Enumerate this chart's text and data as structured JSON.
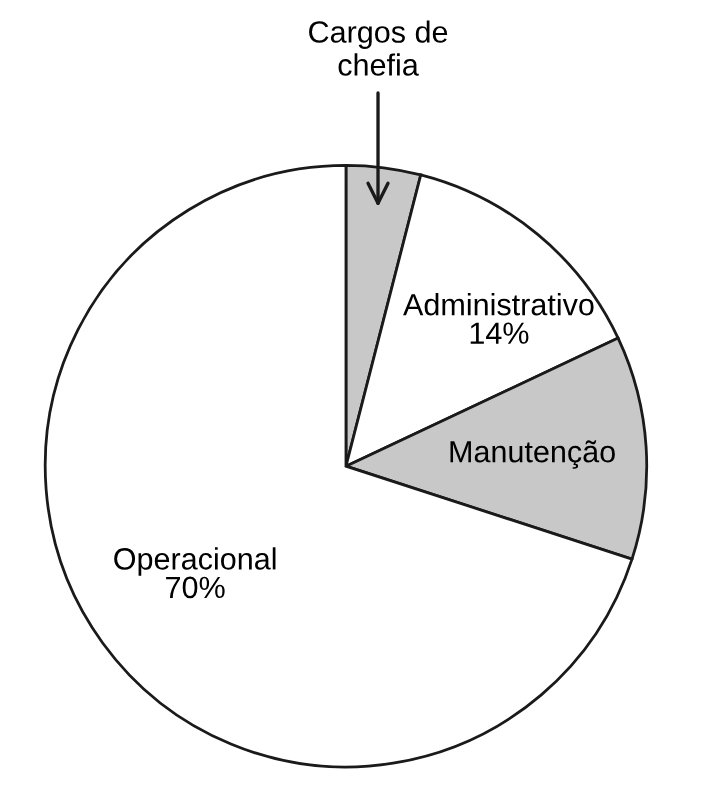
{
  "chart_data": {
    "type": "pie",
    "categories": [
      "Cargos de\nchefia",
      "Administrativo",
      "Manutenção",
      "Operacional"
    ],
    "values": [
      4,
      14,
      12,
      70
    ],
    "colors": [
      "#c8c8c8",
      "#ffffff",
      "#c8c8c8",
      "#ffffff"
    ],
    "value_labels": [
      null,
      "14%",
      null,
      "70%"
    ],
    "legend": false
  }
}
